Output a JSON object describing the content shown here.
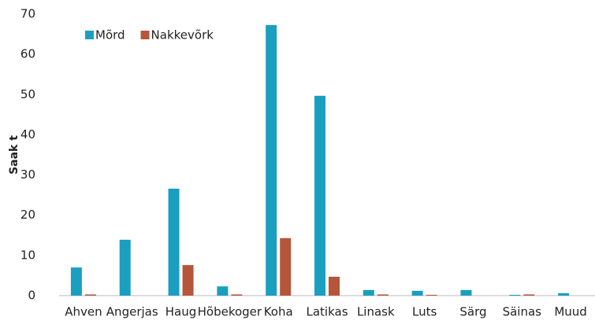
{
  "chart_data": {
    "type": "bar",
    "y_label": "Saak t",
    "categories": [
      "Ahven",
      "Angerjas",
      "Haug",
      "Hõbekoger",
      "Koha",
      "Latikas",
      "Linask",
      "Luts",
      "Särg",
      "Säinas",
      "Muud"
    ],
    "series": [
      {
        "name": "Mõrd",
        "color": "#1a9fc0",
        "values": [
          7.0,
          13.9,
          26.6,
          2.3,
          67.3,
          49.7,
          1.4,
          1.2,
          1.4,
          0.2,
          0.6
        ]
      },
      {
        "name": "Nakkevõrk",
        "color": "#b5563a",
        "values": [
          0.3,
          0,
          7.6,
          0.3,
          14.3,
          4.7,
          0.3,
          0.2,
          0,
          0.3,
          0
        ]
      }
    ],
    "ylim": [
      0,
      70
    ],
    "yticks": [
      0,
      10,
      20,
      30,
      40,
      50,
      60,
      70
    ],
    "legend": "upper left"
  }
}
